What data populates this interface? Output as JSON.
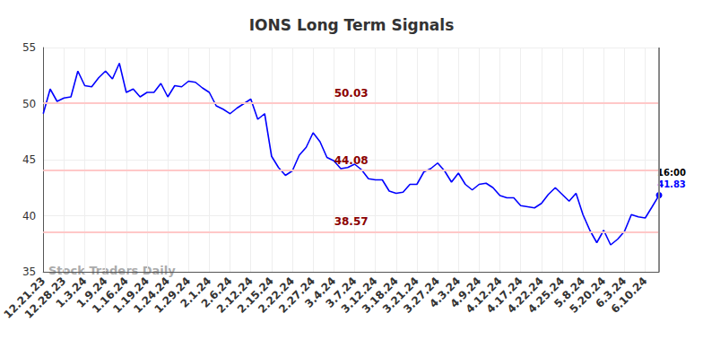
{
  "chart_data": {
    "type": "line",
    "title": "IONS Long Term Signals",
    "watermark": "Stock Traders Daily",
    "end_label": "16:00",
    "categories": [
      "12.21.23",
      null,
      null,
      "12.28.23",
      null,
      null,
      "1.3.24",
      null,
      null,
      "1.9.24",
      null,
      null,
      "1.16.24",
      null,
      null,
      "1.19.24",
      null,
      null,
      "1.24.24",
      null,
      null,
      "1.29.24",
      null,
      null,
      "2.1.24",
      null,
      null,
      "2.6.24",
      null,
      null,
      "2.12.24",
      null,
      null,
      "2.15.24",
      null,
      null,
      "2.22.24",
      null,
      null,
      "2.27.24",
      null,
      null,
      "3.4.24",
      null,
      null,
      "3.7.24",
      null,
      null,
      "3.12.24",
      null,
      null,
      "3.18.24",
      null,
      null,
      "3.21.24",
      null,
      null,
      "3.27.24",
      null,
      null,
      "4.3.24",
      null,
      null,
      "4.9.24",
      null,
      null,
      "4.12.24",
      null,
      null,
      "4.17.24",
      null,
      null,
      "4.22.24",
      null,
      null,
      "4.25.24",
      null,
      null,
      "5.8.24",
      null,
      null,
      "5.20.24",
      null,
      null,
      "6.3.24",
      null,
      null,
      "6.10.24",
      null,
      null
    ],
    "values": [
      49.1,
      51.3,
      50.2,
      50.5,
      50.6,
      52.9,
      51.6,
      51.5,
      52.3,
      52.9,
      52.2,
      53.6,
      51.0,
      51.3,
      50.6,
      51.0,
      51.0,
      51.8,
      50.6,
      51.6,
      51.5,
      52.0,
      51.9,
      51.4,
      51.0,
      49.8,
      49.5,
      49.1,
      49.6,
      50.0,
      50.4,
      48.6,
      49.1,
      45.3,
      44.3,
      43.6,
      44.0,
      45.4,
      46.1,
      47.4,
      46.6,
      45.2,
      44.9,
      44.2,
      44.3,
      44.6,
      44.1,
      43.3,
      43.2,
      43.2,
      42.2,
      42.0,
      42.1,
      42.8,
      42.8,
      43.9,
      44.2,
      44.7,
      44.0,
      43.0,
      43.8,
      42.8,
      42.3,
      42.8,
      42.9,
      42.5,
      41.8,
      41.6,
      41.6,
      40.9,
      40.8,
      40.7,
      41.1,
      41.9,
      42.5,
      41.9,
      41.3,
      42.0,
      40.1,
      38.7,
      37.6,
      38.7,
      37.4,
      37.9,
      38.6,
      40.1,
      39.9,
      39.8,
      40.8,
      41.83
    ],
    "color": "#0000ff",
    "reference_lines": [
      {
        "value": 50.03,
        "color": "#8b0000"
      },
      {
        "value": 44.08,
        "color": "#8b0000"
      },
      {
        "value": 38.57,
        "color": "#8b0000"
      }
    ],
    "ylim": [
      35,
      55
    ],
    "yticks": [
      35,
      40,
      45,
      50,
      55
    ],
    "grid": true
  }
}
